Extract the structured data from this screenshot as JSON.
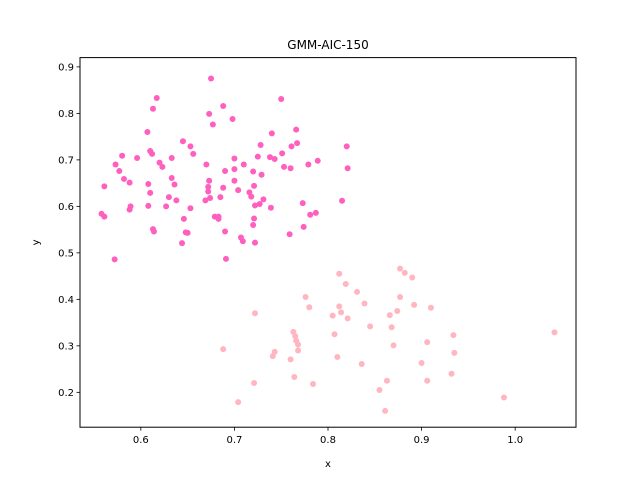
{
  "chart_data": {
    "type": "scatter",
    "title": "GMM-AIC-150",
    "xlabel": "x",
    "ylabel": "y",
    "xlim": [
      0.535,
      1.065
    ],
    "ylim": [
      0.125,
      0.92
    ],
    "xticks": [
      0.6,
      0.7,
      0.8,
      0.9,
      1.0
    ],
    "xtick_labels": [
      "0.6",
      "0.7",
      "0.8",
      "0.9",
      "1.0"
    ],
    "yticks": [
      0.2,
      0.3,
      0.4,
      0.5,
      0.6,
      0.7,
      0.8,
      0.9
    ],
    "ytick_labels": [
      "0.2",
      "0.3",
      "0.4",
      "0.5",
      "0.6",
      "0.7",
      "0.8",
      "0.9"
    ],
    "grid": false,
    "legend": "none",
    "series": [
      {
        "color": "#ff5fbf",
        "points": [
          [
            0.675,
            0.875
          ],
          [
            0.75,
            0.831
          ],
          [
            0.617,
            0.833
          ],
          [
            0.688,
            0.816
          ],
          [
            0.613,
            0.81
          ],
          [
            0.673,
            0.799
          ],
          [
            0.698,
            0.788
          ],
          [
            0.677,
            0.776
          ],
          [
            0.766,
            0.765
          ],
          [
            0.607,
            0.76
          ],
          [
            0.74,
            0.757
          ],
          [
            0.645,
            0.74
          ],
          [
            0.653,
            0.729
          ],
          [
            0.728,
            0.732
          ],
          [
            0.82,
            0.729
          ],
          [
            0.761,
            0.729
          ],
          [
            0.767,
            0.736
          ],
          [
            0.61,
            0.719
          ],
          [
            0.612,
            0.713
          ],
          [
            0.656,
            0.713
          ],
          [
            0.751,
            0.714
          ],
          [
            0.58,
            0.709
          ],
          [
            0.738,
            0.706
          ],
          [
            0.633,
            0.704
          ],
          [
            0.596,
            0.704
          ],
          [
            0.743,
            0.702
          ],
          [
            0.7,
            0.703
          ],
          [
            0.725,
            0.707
          ],
          [
            0.789,
            0.698
          ],
          [
            0.62,
            0.694
          ],
          [
            0.573,
            0.69
          ],
          [
            0.67,
            0.69
          ],
          [
            0.623,
            0.685
          ],
          [
            0.71,
            0.69
          ],
          [
            0.779,
            0.69
          ],
          [
            0.76,
            0.682
          ],
          [
            0.753,
            0.685
          ],
          [
            0.821,
            0.682
          ],
          [
            0.7,
            0.68
          ],
          [
            0.577,
            0.676
          ],
          [
            0.69,
            0.676
          ],
          [
            0.72,
            0.675
          ],
          [
            0.633,
            0.661
          ],
          [
            0.729,
            0.668
          ],
          [
            0.582,
            0.659
          ],
          [
            0.673,
            0.655
          ],
          [
            0.7,
            0.655
          ],
          [
            0.588,
            0.651
          ],
          [
            0.636,
            0.647
          ],
          [
            0.561,
            0.643
          ],
          [
            0.721,
            0.644
          ],
          [
            0.672,
            0.642
          ],
          [
            0.688,
            0.64
          ],
          [
            0.608,
            0.648
          ],
          [
            0.672,
            0.632
          ],
          [
            0.61,
            0.629
          ],
          [
            0.704,
            0.635
          ],
          [
            0.716,
            0.63
          ],
          [
            0.685,
            0.62
          ],
          [
            0.674,
            0.618
          ],
          [
            0.718,
            0.621
          ],
          [
            0.63,
            0.62
          ],
          [
            0.638,
            0.613
          ],
          [
            0.731,
            0.615
          ],
          [
            0.669,
            0.613
          ],
          [
            0.815,
            0.612
          ],
          [
            0.773,
            0.607
          ],
          [
            0.727,
            0.605
          ],
          [
            0.608,
            0.601
          ],
          [
            0.722,
            0.602
          ],
          [
            0.627,
            0.6
          ],
          [
            0.589,
            0.6
          ],
          [
            0.739,
            0.597
          ],
          [
            0.653,
            0.596
          ],
          [
            0.588,
            0.593
          ],
          [
            0.787,
            0.586
          ],
          [
            0.558,
            0.584
          ],
          [
            0.781,
            0.582
          ],
          [
            0.561,
            0.578
          ],
          [
            0.679,
            0.578
          ],
          [
            0.683,
            0.578
          ],
          [
            0.721,
            0.574
          ],
          [
            0.646,
            0.573
          ],
          [
            0.683,
            0.573
          ],
          [
            0.72,
            0.56
          ],
          [
            0.774,
            0.556
          ],
          [
            0.613,
            0.551
          ],
          [
            0.614,
            0.546
          ],
          [
            0.648,
            0.544
          ],
          [
            0.65,
            0.543
          ],
          [
            0.69,
            0.546
          ],
          [
            0.759,
            0.54
          ],
          [
            0.707,
            0.533
          ],
          [
            0.709,
            0.525
          ],
          [
            0.722,
            0.522
          ],
          [
            0.644,
            0.521
          ],
          [
            0.572,
            0.486
          ],
          [
            0.691,
            0.487
          ]
        ]
      },
      {
        "color": "#ffb6c1",
        "points": [
          [
            0.877,
            0.466
          ],
          [
            0.812,
            0.455
          ],
          [
            0.882,
            0.457
          ],
          [
            0.89,
            0.447
          ],
          [
            0.819,
            0.433
          ],
          [
            0.831,
            0.416
          ],
          [
            0.776,
            0.405
          ],
          [
            0.877,
            0.405
          ],
          [
            0.839,
            0.391
          ],
          [
            0.812,
            0.385
          ],
          [
            0.78,
            0.383
          ],
          [
            0.91,
            0.382
          ],
          [
            0.892,
            0.388
          ],
          [
            0.814,
            0.372
          ],
          [
            0.722,
            0.37
          ],
          [
            0.874,
            0.375
          ],
          [
            0.805,
            0.365
          ],
          [
            0.821,
            0.359
          ],
          [
            0.866,
            0.366
          ],
          [
            0.845,
            0.342
          ],
          [
            0.868,
            0.34
          ],
          [
            1.042,
            0.329
          ],
          [
            0.763,
            0.33
          ],
          [
            0.807,
            0.325
          ],
          [
            0.765,
            0.321
          ],
          [
            0.934,
            0.323
          ],
          [
            0.766,
            0.311
          ],
          [
            0.906,
            0.308
          ],
          [
            0.768,
            0.303
          ],
          [
            0.87,
            0.301
          ],
          [
            0.688,
            0.293
          ],
          [
            0.768,
            0.29
          ],
          [
            0.743,
            0.287
          ],
          [
            0.935,
            0.285
          ],
          [
            0.741,
            0.278
          ],
          [
            0.81,
            0.276
          ],
          [
            0.76,
            0.271
          ],
          [
            0.9,
            0.263
          ],
          [
            0.836,
            0.261
          ],
          [
            0.932,
            0.24
          ],
          [
            0.764,
            0.233
          ],
          [
            0.863,
            0.225
          ],
          [
            0.906,
            0.225
          ],
          [
            0.721,
            0.22
          ],
          [
            0.784,
            0.218
          ],
          [
            0.855,
            0.205
          ],
          [
            0.988,
            0.189
          ],
          [
            0.704,
            0.179
          ],
          [
            0.861,
            0.16
          ]
        ]
      }
    ]
  }
}
